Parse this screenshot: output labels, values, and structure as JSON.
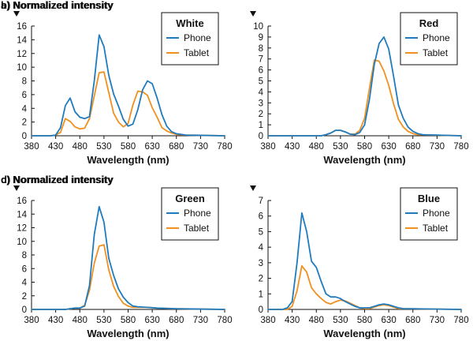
{
  "colors": {
    "phone": "#1f7bbf",
    "tablet": "#f0901e",
    "axis": "#111111"
  },
  "chart_data": [
    {
      "panel_label": "a) Normalized intensity",
      "legend_title": "White",
      "xlabel": "Wavelength (nm)",
      "type": "line",
      "xlim": [
        380,
        780
      ],
      "ylim": [
        0,
        16
      ],
      "x_ticks": [
        "380",
        "430",
        "480",
        "530",
        "580",
        "630",
        "680",
        "730",
        "780"
      ],
      "y_ticks": [
        "0",
        "2",
        "4",
        "6",
        "8",
        "10",
        "12",
        "14",
        "16"
      ],
      "series": [
        {
          "name": "Phone",
          "points": [
            [
              380,
              0
            ],
            [
              420,
              0
            ],
            [
              430,
              0.1
            ],
            [
              440,
              1.2
            ],
            [
              450,
              4.4
            ],
            [
              460,
              5.5
            ],
            [
              470,
              3.5
            ],
            [
              480,
              2.7
            ],
            [
              490,
              2.5
            ],
            [
              500,
              2.8
            ],
            [
              510,
              8.0
            ],
            [
              520,
              14.7
            ],
            [
              530,
              13.0
            ],
            [
              540,
              8.8
            ],
            [
              550,
              6.1
            ],
            [
              560,
              4.3
            ],
            [
              570,
              2.4
            ],
            [
              580,
              1.4
            ],
            [
              590,
              1.7
            ],
            [
              600,
              3.8
            ],
            [
              610,
              6.7
            ],
            [
              620,
              8.0
            ],
            [
              630,
              7.6
            ],
            [
              640,
              5.5
            ],
            [
              650,
              3.1
            ],
            [
              660,
              1.4
            ],
            [
              670,
              0.6
            ],
            [
              680,
              0.3
            ],
            [
              700,
              0.1
            ],
            [
              780,
              0
            ]
          ]
        },
        {
          "name": "Tablet",
          "points": [
            [
              380,
              0
            ],
            [
              420,
              0
            ],
            [
              430,
              0.1
            ],
            [
              440,
              0.5
            ],
            [
              450,
              2.5
            ],
            [
              460,
              2.1
            ],
            [
              470,
              1.3
            ],
            [
              480,
              1.0
            ],
            [
              490,
              1.1
            ],
            [
              500,
              2.5
            ],
            [
              510,
              5.8
            ],
            [
              520,
              9.2
            ],
            [
              530,
              9.3
            ],
            [
              540,
              6.3
            ],
            [
              550,
              3.3
            ],
            [
              560,
              2.0
            ],
            [
              570,
              1.3
            ],
            [
              580,
              1.8
            ],
            [
              590,
              4.5
            ],
            [
              600,
              6.5
            ],
            [
              610,
              6.4
            ],
            [
              620,
              5.9
            ],
            [
              630,
              4.1
            ],
            [
              640,
              2.7
            ],
            [
              650,
              1.2
            ],
            [
              660,
              0.7
            ],
            [
              670,
              0.4
            ],
            [
              680,
              0.2
            ],
            [
              700,
              0.1
            ],
            [
              780,
              0
            ]
          ]
        }
      ]
    },
    {
      "panel_label": "b) Normalized intensity",
      "legend_title": "Red",
      "xlabel": "Wavelength (nm)",
      "type": "line",
      "xlim": [
        380,
        780
      ],
      "ylim": [
        0,
        10
      ],
      "x_ticks": [
        "380",
        "430",
        "480",
        "530",
        "580",
        "630",
        "680",
        "730",
        "780"
      ],
      "y_ticks": [
        "0",
        "1",
        "2",
        "3",
        "4",
        "5",
        "6",
        "7",
        "8",
        "9",
        "10"
      ],
      "series": [
        {
          "name": "Phone",
          "points": [
            [
              380,
              0
            ],
            [
              490,
              0
            ],
            [
              500,
              0.1
            ],
            [
              510,
              0.25
            ],
            [
              520,
              0.5
            ],
            [
              530,
              0.5
            ],
            [
              540,
              0.35
            ],
            [
              550,
              0.15
            ],
            [
              560,
              0.1
            ],
            [
              570,
              0.3
            ],
            [
              580,
              1.0
            ],
            [
              590,
              3.3
            ],
            [
              600,
              6.5
            ],
            [
              610,
              8.4
            ],
            [
              620,
              9.0
            ],
            [
              630,
              7.9
            ],
            [
              640,
              5.4
            ],
            [
              650,
              2.8
            ],
            [
              660,
              1.6
            ],
            [
              670,
              0.8
            ],
            [
              680,
              0.4
            ],
            [
              690,
              0.2
            ],
            [
              700,
              0.1
            ],
            [
              780,
              0
            ]
          ]
        },
        {
          "name": "Tablet",
          "points": [
            [
              380,
              0
            ],
            [
              490,
              0
            ],
            [
              500,
              0.1
            ],
            [
              510,
              0.25
            ],
            [
              520,
              0.5
            ],
            [
              530,
              0.5
            ],
            [
              540,
              0.35
            ],
            [
              550,
              0.15
            ],
            [
              560,
              0.15
            ],
            [
              570,
              0.5
            ],
            [
              580,
              1.6
            ],
            [
              590,
              4.3
            ],
            [
              600,
              6.9
            ],
            [
              610,
              6.8
            ],
            [
              620,
              5.9
            ],
            [
              630,
              4.6
            ],
            [
              640,
              2.9
            ],
            [
              650,
              1.5
            ],
            [
              660,
              0.8
            ],
            [
              670,
              0.4
            ],
            [
              680,
              0.2
            ],
            [
              690,
              0.1
            ],
            [
              780,
              0
            ]
          ]
        }
      ]
    },
    {
      "panel_label": "c) Normalized intensity",
      "legend_title": "Green",
      "xlabel": "Wavelength (nm)",
      "type": "line",
      "xlim": [
        380,
        780
      ],
      "ylim": [
        0,
        16
      ],
      "x_ticks": [
        "380",
        "430",
        "480",
        "530",
        "580",
        "630",
        "680",
        "730",
        "780"
      ],
      "y_ticks": [
        "0",
        "2",
        "4",
        "6",
        "8",
        "10",
        "12",
        "14",
        "16"
      ],
      "series": [
        {
          "name": "Phone",
          "points": [
            [
              380,
              0
            ],
            [
              450,
              0
            ],
            [
              460,
              0.1
            ],
            [
              470,
              0.2
            ],
            [
              480,
              0.2
            ],
            [
              490,
              0.5
            ],
            [
              500,
              3.5
            ],
            [
              510,
              11.0
            ],
            [
              520,
              15.1
            ],
            [
              530,
              12.8
            ],
            [
              540,
              7.5
            ],
            [
              550,
              5.0
            ],
            [
              560,
              3.0
            ],
            [
              570,
              1.8
            ],
            [
              580,
              1.0
            ],
            [
              590,
              0.5
            ],
            [
              600,
              0.4
            ],
            [
              620,
              0.3
            ],
            [
              640,
              0.2
            ],
            [
              680,
              0.1
            ],
            [
              780,
              0
            ]
          ]
        },
        {
          "name": "Tablet",
          "points": [
            [
              380,
              0
            ],
            [
              450,
              0
            ],
            [
              460,
              0.1
            ],
            [
              470,
              0.2
            ],
            [
              480,
              0.2
            ],
            [
              490,
              0.6
            ],
            [
              500,
              2.8
            ],
            [
              510,
              6.8
            ],
            [
              520,
              9.3
            ],
            [
              530,
              9.5
            ],
            [
              540,
              5.8
            ],
            [
              550,
              3.4
            ],
            [
              560,
              1.9
            ],
            [
              570,
              0.9
            ],
            [
              580,
              0.5
            ],
            [
              590,
              0.3
            ],
            [
              620,
              0.3
            ],
            [
              640,
              0.2
            ],
            [
              680,
              0.1
            ],
            [
              780,
              0
            ]
          ]
        }
      ]
    },
    {
      "panel_label": "d) Normalized intensity",
      "legend_title": "Blue",
      "xlabel": "Wavelength (nm)",
      "type": "line",
      "xlim": [
        380,
        780
      ],
      "ylim": [
        0,
        7
      ],
      "x_ticks": [
        "380",
        "430",
        "480",
        "530",
        "580",
        "630",
        "680",
        "730",
        "780"
      ],
      "y_ticks": [
        "0",
        "1",
        "2",
        "3",
        "4",
        "5",
        "6",
        "7"
      ],
      "series": [
        {
          "name": "Phone",
          "points": [
            [
              380,
              0
            ],
            [
              410,
              0
            ],
            [
              420,
              0.1
            ],
            [
              430,
              0.5
            ],
            [
              440,
              3.0
            ],
            [
              450,
              6.2
            ],
            [
              460,
              5.0
            ],
            [
              470,
              3.1
            ],
            [
              480,
              2.7
            ],
            [
              490,
              1.8
            ],
            [
              500,
              1.0
            ],
            [
              510,
              0.8
            ],
            [
              520,
              0.8
            ],
            [
              530,
              0.7
            ],
            [
              540,
              0.5
            ],
            [
              550,
              0.35
            ],
            [
              560,
              0.2
            ],
            [
              570,
              0.1
            ],
            [
              580,
              0.1
            ],
            [
              590,
              0.1
            ],
            [
              600,
              0.2
            ],
            [
              610,
              0.3
            ],
            [
              620,
              0.35
            ],
            [
              630,
              0.3
            ],
            [
              640,
              0.2
            ],
            [
              650,
              0.1
            ],
            [
              660,
              0.05
            ],
            [
              780,
              0
            ]
          ]
        },
        {
          "name": "Tablet",
          "points": [
            [
              380,
              0
            ],
            [
              420,
              0
            ],
            [
              430,
              0.2
            ],
            [
              440,
              1.2
            ],
            [
              450,
              2.8
            ],
            [
              460,
              2.4
            ],
            [
              470,
              1.4
            ],
            [
              480,
              1.0
            ],
            [
              490,
              0.7
            ],
            [
              500,
              0.45
            ],
            [
              510,
              0.35
            ],
            [
              520,
              0.5
            ],
            [
              530,
              0.6
            ],
            [
              540,
              0.55
            ],
            [
              550,
              0.4
            ],
            [
              560,
              0.25
            ],
            [
              570,
              0.1
            ],
            [
              580,
              0.05
            ],
            [
              590,
              0.05
            ],
            [
              600,
              0.15
            ],
            [
              610,
              0.25
            ],
            [
              620,
              0.3
            ],
            [
              630,
              0.25
            ],
            [
              640,
              0.15
            ],
            [
              650,
              0.05
            ],
            [
              780,
              0
            ]
          ]
        }
      ]
    }
  ]
}
